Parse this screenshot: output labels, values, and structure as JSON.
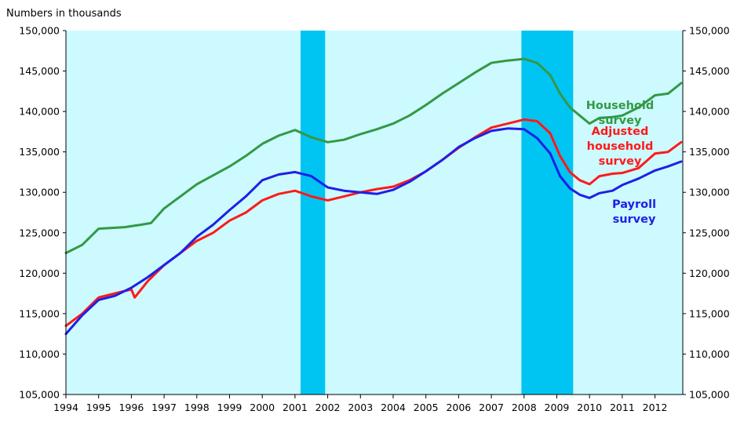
{
  "chart_data": {
    "type": "line",
    "unit_label": "Numbers in thousands",
    "x_label": "",
    "y_label": "",
    "xlim": [
      1994.0,
      2012.85
    ],
    "ylim": [
      105000,
      150000
    ],
    "y_ticks": [
      "150,000",
      "145,000",
      "140,000",
      "135,000",
      "130,000",
      "125,000",
      "120,000",
      "115,000",
      "110,000",
      "105,000"
    ],
    "x_ticks": [
      "1994",
      "1995",
      "1996",
      "1997",
      "1998",
      "1999",
      "2000",
      "2001",
      "2002",
      "2003",
      "2004",
      "2005",
      "2006",
      "2007",
      "2008",
      "2009",
      "2010",
      "2011",
      "2012"
    ],
    "grid": false,
    "legend": "none (series labeled inline on the right)",
    "recessions": [
      [
        2001.17,
        2001.92
      ],
      [
        2007.92,
        2009.5
      ]
    ],
    "series": [
      {
        "name": "Household survey",
        "color": "#339944",
        "points": [
          [
            1994.0,
            122500
          ],
          [
            1994.5,
            123500
          ],
          [
            1995.0,
            125500
          ],
          [
            1995.4,
            125600
          ],
          [
            1995.8,
            125700
          ],
          [
            1996.3,
            126000
          ],
          [
            1996.6,
            126200
          ],
          [
            1997.0,
            128000
          ],
          [
            1997.5,
            129500
          ],
          [
            1998.0,
            131000
          ],
          [
            1998.5,
            132100
          ],
          [
            1999.0,
            133200
          ],
          [
            1999.5,
            134500
          ],
          [
            2000.0,
            136000
          ],
          [
            2000.5,
            137000
          ],
          [
            2001.0,
            137700
          ],
          [
            2001.5,
            136800
          ],
          [
            2002.0,
            136200
          ],
          [
            2002.5,
            136500
          ],
          [
            2003.0,
            137200
          ],
          [
            2003.5,
            137800
          ],
          [
            2004.0,
            138500
          ],
          [
            2004.5,
            139500
          ],
          [
            2005.0,
            140800
          ],
          [
            2005.5,
            142200
          ],
          [
            2006.0,
            143500
          ],
          [
            2006.5,
            144800
          ],
          [
            2007.0,
            146000
          ],
          [
            2007.5,
            146300
          ],
          [
            2008.0,
            146500
          ],
          [
            2008.4,
            146000
          ],
          [
            2008.8,
            144500
          ],
          [
            2009.1,
            142200
          ],
          [
            2009.4,
            140500
          ],
          [
            2009.7,
            139500
          ],
          [
            2010.0,
            138500
          ],
          [
            2010.3,
            139200
          ],
          [
            2010.7,
            139300
          ],
          [
            2011.0,
            139500
          ],
          [
            2011.5,
            140500
          ],
          [
            2012.0,
            142000
          ],
          [
            2012.4,
            142200
          ],
          [
            2012.8,
            143500
          ]
        ]
      },
      {
        "name": "Adjusted household survey",
        "color": "#ff1a1a",
        "points": [
          [
            1994.0,
            113500
          ],
          [
            1994.5,
            115000
          ],
          [
            1995.0,
            117000
          ],
          [
            1995.5,
            117500
          ],
          [
            1996.0,
            118000
          ],
          [
            1996.1,
            117000
          ],
          [
            1996.3,
            118000
          ],
          [
            1996.5,
            119000
          ],
          [
            1997.0,
            121000
          ],
          [
            1997.5,
            122500
          ],
          [
            1998.0,
            124000
          ],
          [
            1998.5,
            125000
          ],
          [
            1999.0,
            126500
          ],
          [
            1999.5,
            127500
          ],
          [
            2000.0,
            129000
          ],
          [
            2000.5,
            129800
          ],
          [
            2001.0,
            130200
          ],
          [
            2001.5,
            129500
          ],
          [
            2002.0,
            129000
          ],
          [
            2002.5,
            129500
          ],
          [
            2003.0,
            130000
          ],
          [
            2003.5,
            130400
          ],
          [
            2004.0,
            130700
          ],
          [
            2004.5,
            131500
          ],
          [
            2005.0,
            132600
          ],
          [
            2005.5,
            134000
          ],
          [
            2006.0,
            135500
          ],
          [
            2006.5,
            136800
          ],
          [
            2007.0,
            138000
          ],
          [
            2007.5,
            138500
          ],
          [
            2008.0,
            139000
          ],
          [
            2008.4,
            138800
          ],
          [
            2008.8,
            137300
          ],
          [
            2009.1,
            134500
          ],
          [
            2009.4,
            132500
          ],
          [
            2009.7,
            131500
          ],
          [
            2010.0,
            131000
          ],
          [
            2010.3,
            132000
          ],
          [
            2010.7,
            132300
          ],
          [
            2011.0,
            132400
          ],
          [
            2011.5,
            133000
          ],
          [
            2012.0,
            134800
          ],
          [
            2012.4,
            135000
          ],
          [
            2012.8,
            136200
          ]
        ]
      },
      {
        "name": "Payroll survey",
        "color": "#1f1fe6",
        "points": [
          [
            1994.0,
            112500
          ],
          [
            1994.5,
            114800
          ],
          [
            1995.0,
            116700
          ],
          [
            1995.5,
            117200
          ],
          [
            1996.0,
            118200
          ],
          [
            1996.5,
            119500
          ],
          [
            1997.0,
            121000
          ],
          [
            1997.5,
            122500
          ],
          [
            1998.0,
            124500
          ],
          [
            1998.5,
            126000
          ],
          [
            1999.0,
            127800
          ],
          [
            1999.5,
            129500
          ],
          [
            2000.0,
            131500
          ],
          [
            2000.5,
            132200
          ],
          [
            2001.0,
            132500
          ],
          [
            2001.5,
            132000
          ],
          [
            2002.0,
            130600
          ],
          [
            2002.5,
            130200
          ],
          [
            2003.0,
            130000
          ],
          [
            2003.5,
            129800
          ],
          [
            2004.0,
            130300
          ],
          [
            2004.5,
            131300
          ],
          [
            2005.0,
            132600
          ],
          [
            2005.5,
            134000
          ],
          [
            2006.0,
            135600
          ],
          [
            2006.5,
            136700
          ],
          [
            2007.0,
            137600
          ],
          [
            2007.5,
            137900
          ],
          [
            2008.0,
            137800
          ],
          [
            2008.4,
            136700
          ],
          [
            2008.8,
            134800
          ],
          [
            2009.1,
            132000
          ],
          [
            2009.4,
            130500
          ],
          [
            2009.7,
            129700
          ],
          [
            2010.0,
            129300
          ],
          [
            2010.3,
            129900
          ],
          [
            2010.7,
            130200
          ],
          [
            2011.0,
            130900
          ],
          [
            2011.5,
            131700
          ],
          [
            2012.0,
            132700
          ],
          [
            2012.4,
            133200
          ],
          [
            2012.8,
            133800
          ]
        ]
      }
    ],
    "annotations": [
      {
        "lines": [
          "Household",
          "survey"
        ],
        "series": 0
      },
      {
        "lines": [
          "Adjusted",
          "household",
          "survey"
        ],
        "series": 1
      },
      {
        "lines": [
          "Payroll",
          "survey"
        ],
        "series": 2
      }
    ],
    "colors": {
      "plot_background": "#ccfaff",
      "recession_shade": "#00c4f2",
      "axis": "#000000"
    }
  }
}
